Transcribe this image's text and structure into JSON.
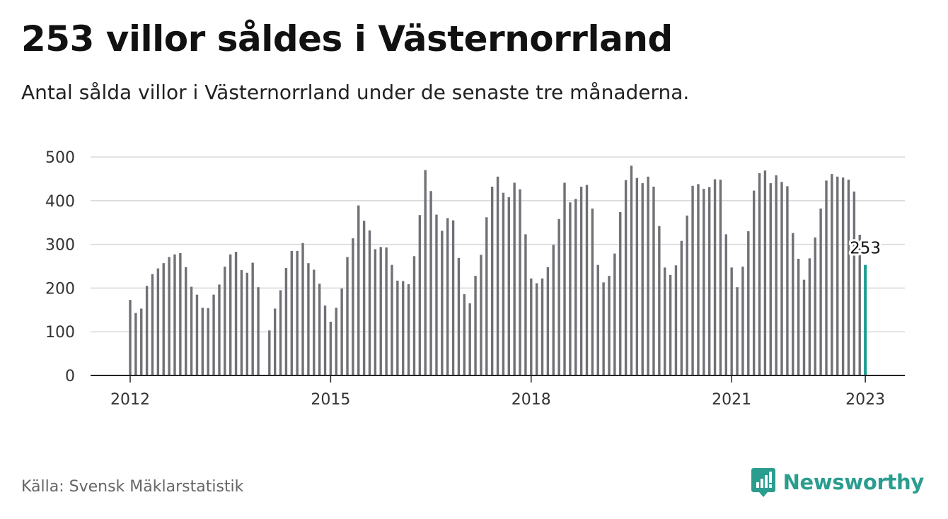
{
  "title": "253 villor såldes i Västernorrland",
  "subtitle": "Antal sålda villor i Västernorrland under de senaste tre månaderna.",
  "source": "Källa: Svensk Mäklarstatistik",
  "brand": "Newsworthy",
  "colors": {
    "bar": "#707076",
    "highlight": "#1a9e8e",
    "grid": "#d9d9d9",
    "brand": "#2a9d8f"
  },
  "chart_data": {
    "type": "bar",
    "ylim": [
      0,
      500
    ],
    "yticks": [
      "0",
      "100",
      "200",
      "300",
      "400",
      "500"
    ],
    "xticks": [
      "2012",
      "2015",
      "2018",
      "2021",
      "2023"
    ],
    "start": "2012-01",
    "grid": true,
    "highlight_label": "253",
    "values": [
      173,
      143,
      153,
      205,
      232,
      245,
      257,
      271,
      277,
      280,
      248,
      203,
      185,
      155,
      154,
      185,
      208,
      249,
      277,
      283,
      241,
      235,
      258,
      202,
      null,
      103,
      153,
      195,
      246,
      285,
      285,
      303,
      257,
      242,
      210,
      160,
      123,
      155,
      199,
      271,
      314,
      389,
      354,
      332,
      289,
      294,
      293,
      253,
      217,
      216,
      209,
      273,
      367,
      470,
      422,
      368,
      331,
      360,
      355,
      269,
      186,
      165,
      228,
      276,
      362,
      432,
      455,
      418,
      408,
      441,
      426,
      323,
      222,
      211,
      222,
      248,
      299,
      358,
      441,
      396,
      404,
      432,
      436,
      382,
      253,
      213,
      228,
      279,
      374,
      447,
      480,
      452,
      440,
      455,
      432,
      342,
      247,
      230,
      252,
      308,
      366,
      434,
      438,
      427,
      431,
      449,
      448,
      323,
      247,
      202,
      249,
      330,
      423,
      463,
      469,
      440,
      458,
      443,
      433,
      326,
      267,
      219,
      268,
      316,
      382,
      446,
      461,
      455,
      453,
      448,
      421,
      322,
      253
    ]
  }
}
